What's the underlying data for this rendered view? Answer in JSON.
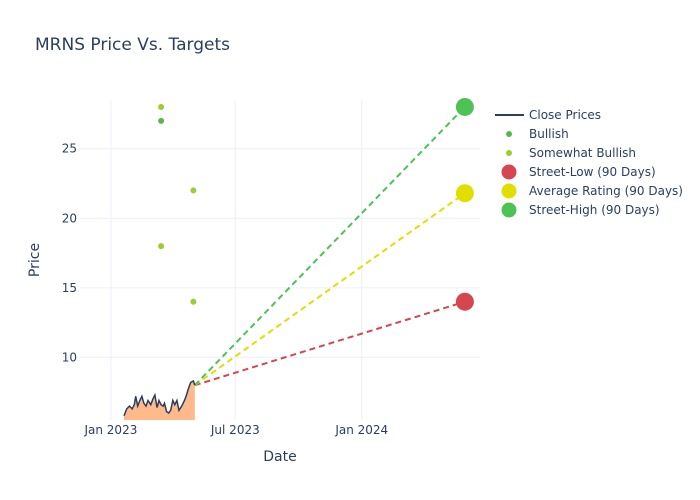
{
  "chart_data": {
    "type": "line",
    "title": "MRNS Price Vs. Targets",
    "xlabel": "Date",
    "ylabel": "Price",
    "x_range": [
      "2022-11-17",
      "2024-06-21"
    ],
    "y_range": [
      5.5,
      28.5
    ],
    "x_ticks": [
      {
        "date": "2023-01-01",
        "label": "Jan 2023"
      },
      {
        "date": "2023-07-01",
        "label": "Jul 2023"
      },
      {
        "date": "2024-01-01",
        "label": "Jan 2024"
      }
    ],
    "y_ticks": [
      10,
      15,
      20,
      25
    ],
    "grid": true,
    "legend_position": "top-right",
    "colors": {
      "close": "#2a3f5f",
      "fill": "#ffb98b",
      "bullish": "#5ab54b",
      "somewhat_bullish": "#9acd32",
      "low": "#d64550",
      "avg": "#e0df00",
      "high": "#4ec254"
    },
    "series": [
      {
        "name": "Close Prices",
        "kind": "line",
        "points": [
          [
            "2023-01-20",
            5.8
          ],
          [
            "2023-01-24",
            6.3
          ],
          [
            "2023-01-28",
            6.5
          ],
          [
            "2023-02-01",
            6.3
          ],
          [
            "2023-02-04",
            6.6
          ],
          [
            "2023-02-06",
            7.2
          ],
          [
            "2023-02-09",
            6.5
          ],
          [
            "2023-02-12",
            6.9
          ],
          [
            "2023-02-15",
            7.2
          ],
          [
            "2023-02-18",
            6.7
          ],
          [
            "2023-02-21",
            6.5
          ],
          [
            "2023-02-24",
            6.9
          ],
          [
            "2023-02-28",
            6.6
          ],
          [
            "2023-03-03",
            7.0
          ],
          [
            "2023-03-06",
            7.3
          ],
          [
            "2023-03-09",
            6.4
          ],
          [
            "2023-03-12",
            6.9
          ],
          [
            "2023-03-15",
            6.6
          ],
          [
            "2023-03-18",
            6.5
          ],
          [
            "2023-03-20",
            6.7
          ],
          [
            "2023-03-23",
            6.1
          ],
          [
            "2023-03-26",
            6.0
          ],
          [
            "2023-03-29",
            6.2
          ],
          [
            "2023-04-01",
            6.9
          ],
          [
            "2023-04-04",
            6.6
          ],
          [
            "2023-04-07",
            6.9
          ],
          [
            "2023-04-10",
            6.2
          ],
          [
            "2023-04-14",
            6.5
          ],
          [
            "2023-04-18",
            6.9
          ],
          [
            "2023-04-21",
            7.3
          ],
          [
            "2023-04-24",
            7.8
          ],
          [
            "2023-04-27",
            8.2
          ],
          [
            "2023-05-01",
            8.3
          ],
          [
            "2023-05-03",
            8.0
          ]
        ]
      },
      {
        "name": "Bullish",
        "kind": "markers",
        "points": [
          [
            "2023-03-15",
            27.0
          ]
        ]
      },
      {
        "name": "Somewhat Bullish",
        "kind": "markers",
        "points": [
          [
            "2023-03-15",
            28.0
          ],
          [
            "2023-03-15",
            18.0
          ],
          [
            "2023-05-01",
            22.0
          ],
          [
            "2023-05-01",
            14.0
          ]
        ]
      },
      {
        "name": "Street-Low (90 Days)",
        "kind": "target",
        "start": [
          "2023-05-03",
          8.0
        ],
        "end": [
          "2024-05-30",
          14.0
        ]
      },
      {
        "name": "Average Rating (90 Days)",
        "kind": "target",
        "start": [
          "2023-05-03",
          8.0
        ],
        "end": [
          "2024-05-30",
          21.8
        ]
      },
      {
        "name": "Street-High (90 Days)",
        "kind": "target",
        "start": [
          "2023-05-03",
          8.0
        ],
        "end": [
          "2024-05-30",
          28.0
        ]
      }
    ]
  }
}
